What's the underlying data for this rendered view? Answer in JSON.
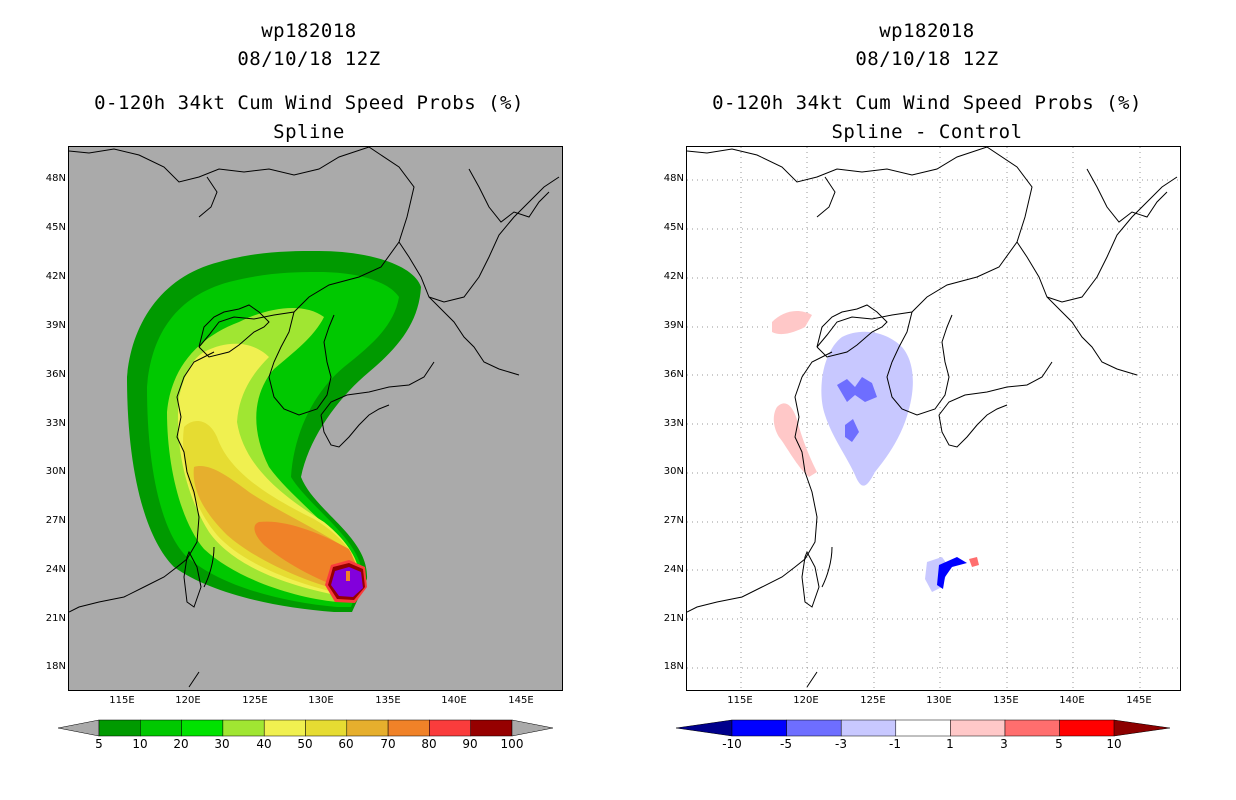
{
  "left_panel": {
    "storm_id": "wp182018",
    "date": "08/10/18 12Z",
    "product": "0-120h 34kt Cum Wind Speed Probs (%)",
    "subtitle": "Spline",
    "colorbar": {
      "labels": [
        "5",
        "10",
        "20",
        "30",
        "40",
        "50",
        "60",
        "70",
        "80",
        "90",
        "100"
      ],
      "colors": [
        "#009a00",
        "#00c800",
        "#00e200",
        "#a0e632",
        "#f0f050",
        "#e6dc32",
        "#e6af2d",
        "#f08228",
        "#fa3c3c",
        "#960000",
        "#8200dc"
      ]
    }
  },
  "right_panel": {
    "storm_id": "wp182018",
    "date": "08/10/18 12Z",
    "product": "0-120h 34kt Cum Wind Speed Probs (%)",
    "subtitle": "Spline - Control",
    "colorbar": {
      "labels": [
        "-10",
        "-5",
        "-3",
        "-1",
        "1",
        "3",
        "5",
        "10"
      ],
      "colors": [
        "#00008c",
        "#0000ff",
        "#6e6eff",
        "#c8c8ff",
        "#ffffff",
        "#ffc8c8",
        "#ff6e6e",
        "#ff0000",
        "#8c0000"
      ]
    }
  },
  "axes": {
    "lat_labels": [
      "48N",
      "45N",
      "42N",
      "39N",
      "36N",
      "33N",
      "30N",
      "27N",
      "24N",
      "21N",
      "18N"
    ],
    "lon_labels": [
      "115E",
      "120E",
      "125E",
      "130E",
      "135E",
      "140E",
      "145E"
    ]
  },
  "colors": {
    "background": "#aaaaaa"
  }
}
